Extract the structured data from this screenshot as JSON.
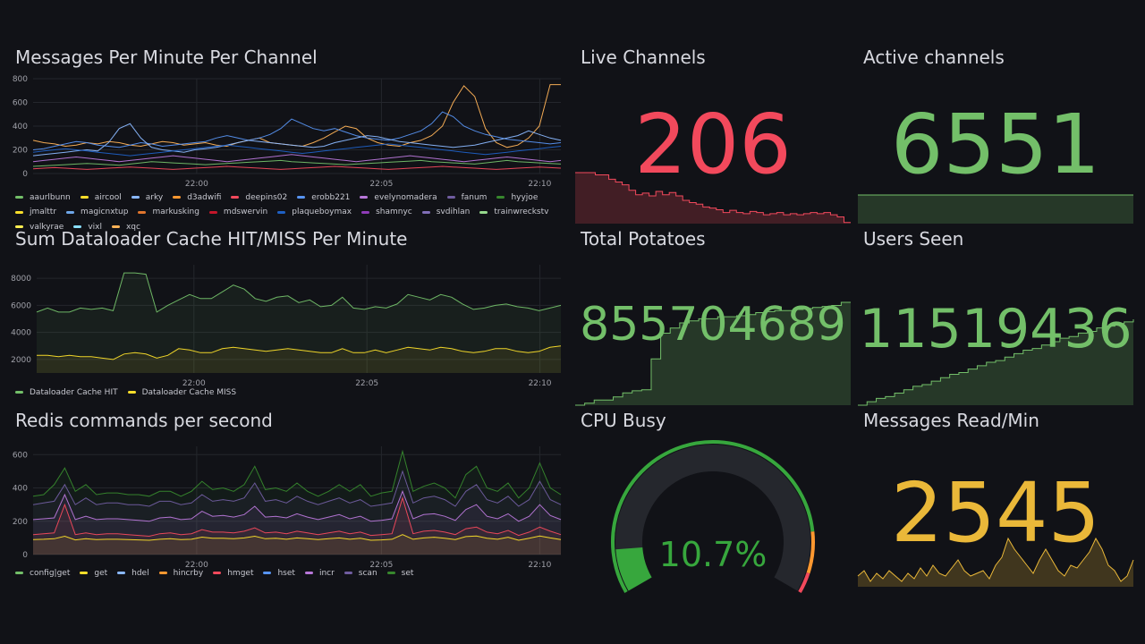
{
  "colors": {
    "bg": "#111217",
    "red": "#f2495c",
    "green": "#73bf69",
    "yellow": "#fade2a",
    "gold": "#eab839",
    "orange": "#ff9830",
    "blue": "#5794f2",
    "purple": "#b877d9",
    "grid": "#2c2e35"
  },
  "messages_panel": {
    "title": "Messages Per Minute Per Channel",
    "legend": [
      {
        "name": "aaurlbunn",
        "color": "#73bf69"
      },
      {
        "name": "aircool",
        "color": "#fade2a"
      },
      {
        "name": "arky",
        "color": "#8ab8ff"
      },
      {
        "name": "d3adwifi",
        "color": "#ff9830"
      },
      {
        "name": "deepins02",
        "color": "#f2495c"
      },
      {
        "name": "erobb221",
        "color": "#5794f2"
      },
      {
        "name": "evelynomadera",
        "color": "#b877d9"
      },
      {
        "name": "fanum",
        "color": "#705da0"
      },
      {
        "name": "hyyjoe",
        "color": "#37872d"
      },
      {
        "name": "jmalttr",
        "color": "#fade2a"
      },
      {
        "name": "magicnxtup",
        "color": "#6ea6e8"
      },
      {
        "name": "markusking",
        "color": "#e0752d"
      },
      {
        "name": "mdswervin",
        "color": "#c4162a"
      },
      {
        "name": "plaqueboymax",
        "color": "#1f60c4"
      },
      {
        "name": "shamnyc",
        "color": "#8f3bb8"
      },
      {
        "name": "svdihlan",
        "color": "#806eb7"
      },
      {
        "name": "trainwreckstv",
        "color": "#96d98d"
      },
      {
        "name": "valkyrae",
        "color": "#ffee52"
      },
      {
        "name": "vixl",
        "color": "#8ae0ff"
      },
      {
        "name": "xqc",
        "color": "#ffb357"
      }
    ],
    "chart_data": {
      "type": "line",
      "yticks": [
        "0",
        "200",
        "400",
        "600",
        "800"
      ],
      "xticks": [
        "22:00",
        "22:05",
        "22:10"
      ],
      "ylim": [
        0,
        800
      ],
      "series": [
        {
          "name": "xqc",
          "color": "#ffb357",
          "values": [
            280,
            260,
            250,
            230,
            240,
            260,
            250,
            270,
            260,
            240,
            230,
            250,
            270,
            260,
            240,
            250,
            260,
            240,
            230,
            260,
            280,
            300,
            260,
            250,
            240,
            230,
            260,
            300,
            350,
            400,
            380,
            300,
            260,
            240,
            230,
            260,
            280,
            320,
            400,
            600,
            740,
            650,
            380,
            260,
            220,
            240,
            300,
            400,
            750,
            750
          ]
        },
        {
          "name": "erobb221",
          "color": "#5794f2",
          "values": [
            200,
            210,
            230,
            250,
            270,
            260,
            240,
            230,
            220,
            240,
            260,
            250,
            230,
            240,
            250,
            260,
            270,
            300,
            320,
            300,
            280,
            300,
            330,
            380,
            460,
            420,
            380,
            360,
            380,
            350,
            320,
            300,
            290,
            280,
            300,
            330,
            360,
            420,
            520,
            480,
            400,
            360,
            330,
            310,
            290,
            280,
            270,
            260,
            250,
            260
          ]
        },
        {
          "name": "arky",
          "color": "#8ab8ff",
          "values": [
            150,
            160,
            170,
            180,
            190,
            200,
            190,
            260,
            380,
            420,
            300,
            220,
            200,
            190,
            180,
            200,
            210,
            220,
            240,
            260,
            280,
            270,
            260,
            250,
            240,
            230,
            220,
            230,
            260,
            280,
            300,
            320,
            310,
            290,
            270,
            260,
            250,
            240,
            230,
            220,
            230,
            240,
            260,
            280,
            300,
            320,
            360,
            330,
            300,
            280
          ]
        },
        {
          "name": "aaurlbunn",
          "color": "#73bf69",
          "values": [
            60,
            65,
            70,
            75,
            80,
            85,
            80,
            75,
            70,
            80,
            90,
            100,
            95,
            90,
            85,
            80,
            75,
            80,
            85,
            90,
            95,
            100,
            105,
            110,
            100,
            95,
            90,
            85,
            80,
            75,
            80,
            85,
            90,
            95,
            100,
            105,
            110,
            100,
            95,
            90,
            85,
            80,
            90,
            100,
            110,
            100,
            95,
            90,
            85,
            80
          ]
        },
        {
          "name": "plaqueboymax",
          "color": "#1f60c4",
          "values": [
            180,
            190,
            200,
            210,
            200,
            190,
            180,
            170,
            160,
            150,
            160,
            170,
            180,
            190,
            200,
            210,
            220,
            230,
            240,
            230,
            220,
            210,
            200,
            190,
            180,
            170,
            180,
            190,
            200,
            210,
            220,
            230,
            240,
            250,
            240,
            230,
            220,
            210,
            200,
            190,
            180,
            170,
            160,
            170,
            180,
            190,
            200,
            210,
            220,
            230
          ]
        },
        {
          "name": "evelynomadera",
          "color": "#b877d9",
          "values": [
            100,
            110,
            120,
            130,
            140,
            130,
            120,
            110,
            100,
            110,
            120,
            130,
            140,
            150,
            140,
            130,
            120,
            110,
            100,
            110,
            120,
            130,
            140,
            150,
            160,
            150,
            140,
            130,
            120,
            110,
            100,
            110,
            120,
            130,
            140,
            150,
            140,
            130,
            120,
            110,
            100,
            110,
            120,
            130,
            140,
            130,
            120,
            110,
            100,
            110
          ]
        },
        {
          "name": "deepins02",
          "color": "#f2495c",
          "values": [
            40,
            45,
            50,
            45,
            40,
            35,
            40,
            45,
            50,
            55,
            50,
            45,
            40,
            35,
            40,
            45,
            50,
            55,
            60,
            55,
            50,
            45,
            40,
            35,
            40,
            45,
            50,
            55,
            60,
            55,
            50,
            45,
            40,
            35,
            40,
            45,
            50,
            55,
            60,
            55,
            50,
            45,
            40,
            35,
            40,
            45,
            50,
            55,
            50,
            45
          ]
        }
      ]
    }
  },
  "live_channels": {
    "title": "Live Channels",
    "value": "206",
    "color": "#f2495c",
    "spark": [
      0.92,
      0.92,
      0.92,
      0.88,
      0.88,
      0.8,
      0.75,
      0.7,
      0.6,
      0.52,
      0.55,
      0.5,
      0.58,
      0.52,
      0.56,
      0.5,
      0.42,
      0.38,
      0.35,
      0.3,
      0.28,
      0.25,
      0.2,
      0.24,
      0.2,
      0.18,
      0.22,
      0.2,
      0.16,
      0.18,
      0.2,
      0.16,
      0.18,
      0.16,
      0.18,
      0.2,
      0.18,
      0.2,
      0.16,
      0.12,
      0.02,
      0.02
    ]
  },
  "active_channels": {
    "title": "Active channels",
    "value": "6551",
    "color": "#73bf69",
    "spark": [
      1.0,
      1.0
    ]
  },
  "total_potatoes": {
    "title": "Total Potatoes",
    "value": "855704689",
    "color": "#73bf69",
    "spark": [
      0.0,
      0.02,
      0.05,
      0.05,
      0.08,
      0.12,
      0.14,
      0.15,
      0.45,
      0.7,
      0.75,
      0.8,
      0.82,
      0.84,
      0.84,
      0.86,
      0.86,
      0.87,
      0.88,
      0.9,
      0.91,
      0.92,
      0.92,
      0.93,
      0.94,
      0.95,
      0.96,
      0.97,
      1.0,
      1.0
    ]
  },
  "users_seen": {
    "title": "Users Seen",
    "value": "11519436",
    "color": "#73bf69",
    "spark": [
      0.0,
      0.04,
      0.08,
      0.1,
      0.14,
      0.18,
      0.22,
      0.24,
      0.28,
      0.32,
      0.36,
      0.38,
      0.42,
      0.46,
      0.5,
      0.52,
      0.56,
      0.6,
      0.64,
      0.66,
      0.7,
      0.74,
      0.78,
      0.8,
      0.84,
      0.86,
      0.9,
      0.92,
      0.95,
      0.97,
      1.0
    ]
  },
  "messages_read": {
    "title": "Messages Read/Min",
    "value": "2545",
    "color": "#eab839",
    "spark": [
      0.2,
      0.3,
      0.1,
      0.25,
      0.15,
      0.3,
      0.2,
      0.1,
      0.25,
      0.15,
      0.35,
      0.2,
      0.4,
      0.25,
      0.2,
      0.35,
      0.5,
      0.3,
      0.2,
      0.25,
      0.3,
      0.15,
      0.4,
      0.55,
      0.9,
      0.7,
      0.55,
      0.4,
      0.25,
      0.5,
      0.7,
      0.5,
      0.3,
      0.2,
      0.4,
      0.35,
      0.5,
      0.65,
      0.9,
      0.7,
      0.4,
      0.3,
      0.1,
      0.2,
      0.5
    ]
  },
  "cpu": {
    "title": "CPU Busy",
    "value": "10.7%",
    "fraction": 0.107,
    "color": "#37a73d"
  },
  "dataloader_panel": {
    "title": "Sum Dataloader Cache HIT/MISS Per Minute",
    "legend": [
      {
        "name": "Dataloader Cache HIT",
        "color": "#73bf69"
      },
      {
        "name": "Dataloader Cache MISS",
        "color": "#fade2a"
      }
    ],
    "chart_data": {
      "type": "line",
      "yticks": [
        "2000",
        "4000",
        "6000",
        "8000"
      ],
      "xticks": [
        "22:00",
        "22:05",
        "22:10"
      ],
      "ylim": [
        1000,
        9000
      ],
      "series": [
        {
          "name": "Dataloader Cache HIT",
          "color": "#73bf69",
          "fill": true,
          "values": [
            5500,
            5800,
            5500,
            5500,
            5800,
            5700,
            5800,
            5600,
            8400,
            8400,
            8300,
            5500,
            6000,
            6400,
            6800,
            6500,
            6500,
            7000,
            7500,
            7200,
            6500,
            6300,
            6600,
            6700,
            6200,
            6400,
            5900,
            6000,
            6600,
            5800,
            5700,
            5900,
            5800,
            6100,
            6800,
            6600,
            6400,
            6800,
            6600,
            6100,
            5700,
            5800,
            6000,
            6100,
            5900,
            5800,
            5600,
            5800,
            6000
          ]
        },
        {
          "name": "Dataloader Cache MISS",
          "color": "#fade2a",
          "fill": true,
          "values": [
            2300,
            2300,
            2200,
            2300,
            2200,
            2200,
            2100,
            2000,
            2400,
            2500,
            2400,
            2100,
            2300,
            2800,
            2700,
            2500,
            2500,
            2800,
            2900,
            2800,
            2700,
            2600,
            2700,
            2800,
            2700,
            2600,
            2500,
            2500,
            2800,
            2500,
            2500,
            2700,
            2500,
            2700,
            2900,
            2800,
            2700,
            2900,
            2800,
            2600,
            2500,
            2600,
            2800,
            2800,
            2600,
            2500,
            2600,
            2900,
            3000
          ]
        }
      ]
    }
  },
  "redis_panel": {
    "title": "Redis commands per second",
    "legend": [
      {
        "name": "config|get",
        "color": "#73bf69"
      },
      {
        "name": "get",
        "color": "#fade2a"
      },
      {
        "name": "hdel",
        "color": "#8ab8ff"
      },
      {
        "name": "hincrby",
        "color": "#ff9830"
      },
      {
        "name": "hmget",
        "color": "#f2495c"
      },
      {
        "name": "hset",
        "color": "#5794f2"
      },
      {
        "name": "incr",
        "color": "#b877d9"
      },
      {
        "name": "scan",
        "color": "#705da0"
      },
      {
        "name": "set",
        "color": "#37872d"
      }
    ],
    "chart_data": {
      "type": "area",
      "yticks": [
        "0",
        "200",
        "400",
        "600"
      ],
      "xticks": [
        "22:00",
        "22:05",
        "22:10"
      ],
      "ylim": [
        0,
        650
      ],
      "series": [
        {
          "name": "set",
          "color": "#37872d",
          "values": [
            350,
            360,
            420,
            520,
            380,
            420,
            360,
            370,
            370,
            360,
            360,
            350,
            380,
            380,
            350,
            380,
            440,
            390,
            400,
            380,
            420,
            530,
            390,
            400,
            380,
            430,
            380,
            350,
            380,
            420,
            380,
            420,
            350,
            370,
            380,
            620,
            380,
            410,
            430,
            400,
            340,
            480,
            530,
            400,
            380,
            430,
            340,
            400,
            550,
            400,
            360
          ]
        },
        {
          "name": "scan",
          "color": "#705da0",
          "values": [
            300,
            310,
            320,
            420,
            300,
            340,
            300,
            310,
            310,
            300,
            300,
            290,
            320,
            320,
            300,
            310,
            360,
            320,
            330,
            320,
            340,
            430,
            320,
            330,
            310,
            350,
            320,
            300,
            320,
            340,
            310,
            330,
            290,
            300,
            310,
            500,
            310,
            340,
            350,
            330,
            290,
            380,
            420,
            330,
            310,
            350,
            290,
            330,
            440,
            330,
            300
          ]
        },
        {
          "name": "incr",
          "color": "#b877d9",
          "values": [
            210,
            215,
            220,
            360,
            210,
            230,
            210,
            215,
            215,
            210,
            205,
            200,
            220,
            225,
            210,
            215,
            260,
            230,
            235,
            225,
            240,
            290,
            225,
            230,
            220,
            245,
            225,
            210,
            225,
            240,
            215,
            230,
            200,
            205,
            215,
            380,
            215,
            240,
            245,
            230,
            205,
            270,
            300,
            230,
            215,
            245,
            200,
            230,
            300,
            235,
            210
          ]
        },
        {
          "name": "hmget",
          "color": "#f2495c",
          "values": [
            120,
            125,
            130,
            300,
            120,
            130,
            120,
            125,
            125,
            120,
            115,
            110,
            125,
            130,
            120,
            125,
            150,
            135,
            135,
            130,
            140,
            160,
            130,
            135,
            125,
            140,
            130,
            120,
            130,
            140,
            125,
            135,
            115,
            120,
            125,
            340,
            125,
            140,
            145,
            135,
            120,
            155,
            165,
            135,
            125,
            145,
            115,
            135,
            165,
            140,
            120
          ]
        },
        {
          "name": "get",
          "color": "#fade2a",
          "values": [
            90,
            92,
            95,
            110,
            88,
            95,
            90,
            92,
            92,
            90,
            88,
            86,
            92,
            95,
            90,
            92,
            105,
            98,
            98,
            95,
            100,
            110,
            95,
            98,
            92,
            100,
            95,
            90,
            95,
            100,
            92,
            98,
            86,
            88,
            92,
            120,
            92,
            100,
            104,
            98,
            90,
            108,
            112,
            98,
            92,
            104,
            86,
            98,
            112,
            100,
            90
          ]
        }
      ]
    }
  }
}
